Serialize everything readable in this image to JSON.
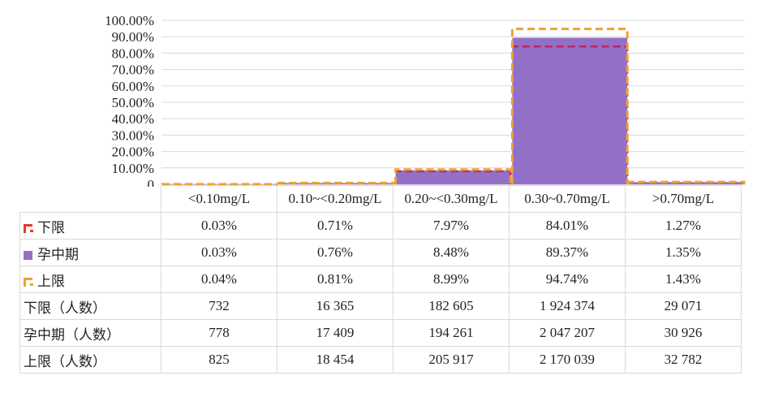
{
  "chart_data": {
    "type": "bar",
    "categories": [
      "<0.10mg/L",
      "0.10~<0.20mg/L",
      "0.20~<0.30mg/L",
      "0.30~0.70mg/L",
      ">0.70mg/L"
    ],
    "y_ticks": [
      "0",
      "10.00%",
      "20.00%",
      "30.00%",
      "40.00%",
      "50.00%",
      "60.00%",
      "70.00%",
      "80.00%",
      "90.00%",
      "100.00%"
    ],
    "ylim": [
      0,
      100
    ],
    "grid": true,
    "legend_placement": "table-left",
    "series": [
      {
        "name": "下限",
        "style": "dashed-outline",
        "color": "#c0245c",
        "values": [
          0.03,
          0.71,
          7.97,
          84.01,
          1.27
        ],
        "labels": [
          "0.03%",
          "0.71%",
          "7.97%",
          "84.01%",
          "1.27%"
        ]
      },
      {
        "name": "孕中期",
        "style": "filled",
        "color": "#9370c8",
        "values": [
          0.03,
          0.76,
          8.48,
          89.37,
          1.35
        ],
        "labels": [
          "0.03%",
          "0.76%",
          "8.48%",
          "89.37%",
          "1.35%"
        ]
      },
      {
        "name": "上限",
        "style": "dashed-outline",
        "color": "#f0a030",
        "values": [
          0.04,
          0.81,
          8.99,
          94.74,
          1.43
        ],
        "labels": [
          "0.04%",
          "0.81%",
          "8.99%",
          "94.74%",
          "1.43%"
        ]
      }
    ],
    "count_rows": [
      {
        "name": "下限（人数）",
        "values": [
          "732",
          "16 365",
          "182 605",
          "1 924 374",
          "29 071"
        ]
      },
      {
        "name": "孕中期（人数）",
        "values": [
          "778",
          "17 409",
          "194 261",
          "2 047 207",
          "30 926"
        ]
      },
      {
        "name": "上限（人数）",
        "values": [
          "825",
          "18 454",
          "205 917",
          "2 170 039",
          "32 782"
        ]
      }
    ]
  }
}
